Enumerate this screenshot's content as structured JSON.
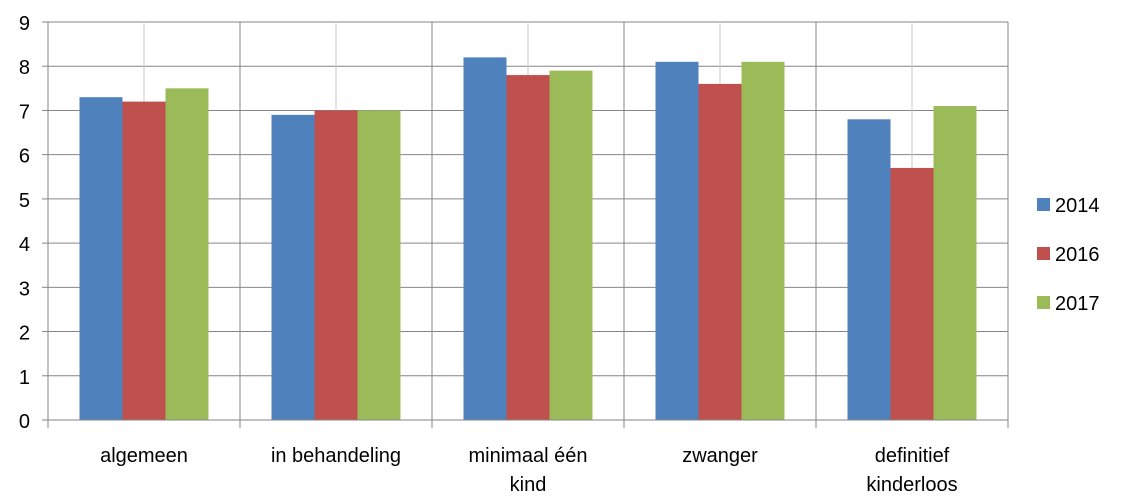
{
  "chart_data": {
    "type": "bar",
    "title": "",
    "xlabel": "",
    "ylabel": "",
    "ylim": [
      0,
      9
    ],
    "yticks": [
      "0",
      "1",
      "2",
      "3",
      "4",
      "5",
      "6",
      "7",
      "8",
      "9"
    ],
    "grid": true,
    "legend_position": "right",
    "categories": [
      [
        "algemeen"
      ],
      [
        "in behandeling"
      ],
      [
        "minimaal één",
        "kind"
      ],
      [
        "zwanger"
      ],
      [
        "definitief",
        "kinderloos"
      ]
    ],
    "series": [
      {
        "name": "2014",
        "color": "#4F81BD",
        "values": [
          7.3,
          6.9,
          8.2,
          8.1,
          6.8
        ]
      },
      {
        "name": "2016",
        "color": "#C0504D",
        "values": [
          7.2,
          7.0,
          7.8,
          7.6,
          5.7
        ]
      },
      {
        "name": "2017",
        "color": "#9BBB59",
        "values": [
          7.5,
          7.0,
          7.9,
          8.1,
          7.1
        ]
      }
    ]
  }
}
